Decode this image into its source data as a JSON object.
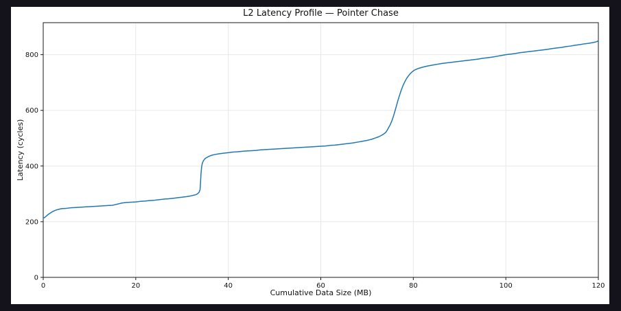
{
  "chart_data": {
    "type": "line",
    "title": "L2 Latency Profile — Pointer Chase",
    "xlabel": "Cumulative Data Size (MB)",
    "ylabel": "Latency (cycles)",
    "xlim": [
      0,
      120
    ],
    "ylim": [
      0,
      915
    ],
    "xticks": [
      0,
      20,
      40,
      60,
      80,
      100,
      120
    ],
    "yticks": [
      0,
      200,
      400,
      600,
      800
    ],
    "grid": true,
    "legend": false,
    "series": [
      {
        "name": "latency-vs-cumulative-data-size",
        "color": "#1f77b4",
        "points": [
          [
            0,
            212
          ],
          [
            0.3,
            215
          ],
          [
            0.6,
            219
          ],
          [
            1,
            225
          ],
          [
            1.5,
            231
          ],
          [
            2,
            236
          ],
          [
            2.5,
            240
          ],
          [
            3,
            243
          ],
          [
            3.5,
            245
          ],
          [
            4,
            247
          ],
          [
            5,
            248
          ],
          [
            6,
            250
          ],
          [
            7,
            251
          ],
          [
            8,
            252
          ],
          [
            9,
            253
          ],
          [
            10,
            254
          ],
          [
            11,
            255
          ],
          [
            12,
            256
          ],
          [
            13,
            257
          ],
          [
            14,
            258
          ],
          [
            15,
            259
          ],
          [
            15.5,
            261
          ],
          [
            16,
            263
          ],
          [
            16.5,
            265
          ],
          [
            17,
            267
          ],
          [
            18,
            269
          ],
          [
            19,
            270
          ],
          [
            20,
            271
          ],
          [
            21,
            273
          ],
          [
            22,
            274
          ],
          [
            23,
            276
          ],
          [
            24,
            277
          ],
          [
            25,
            279
          ],
          [
            26,
            281
          ],
          [
            27,
            282
          ],
          [
            28,
            284
          ],
          [
            29,
            286
          ],
          [
            30,
            288
          ],
          [
            31,
            290
          ],
          [
            32,
            293
          ],
          [
            32.5,
            295
          ],
          [
            33,
            297
          ],
          [
            33.4,
            301
          ],
          [
            33.7,
            306
          ],
          [
            33.9,
            315
          ],
          [
            34,
            340
          ],
          [
            34.1,
            372
          ],
          [
            34.25,
            398
          ],
          [
            34.4,
            410
          ],
          [
            34.6,
            418
          ],
          [
            34.8,
            423
          ],
          [
            35,
            427
          ],
          [
            35.5,
            432
          ],
          [
            36,
            436
          ],
          [
            36.5,
            439
          ],
          [
            37,
            441
          ],
          [
            38,
            444
          ],
          [
            39,
            446
          ],
          [
            40,
            448
          ],
          [
            41,
            450
          ],
          [
            42,
            451
          ],
          [
            43,
            453
          ],
          [
            44,
            454
          ],
          [
            45,
            455
          ],
          [
            46,
            456
          ],
          [
            47,
            458
          ],
          [
            48,
            459
          ],
          [
            49,
            460
          ],
          [
            50,
            461
          ],
          [
            52,
            463
          ],
          [
            54,
            465
          ],
          [
            56,
            467
          ],
          [
            58,
            469
          ],
          [
            60,
            471
          ],
          [
            61,
            472
          ],
          [
            62,
            474
          ],
          [
            63,
            475
          ],
          [
            64,
            477
          ],
          [
            65,
            479
          ],
          [
            66,
            481
          ],
          [
            67,
            483
          ],
          [
            68,
            486
          ],
          [
            69,
            489
          ],
          [
            70,
            492
          ],
          [
            70.5,
            494
          ],
          [
            71,
            496
          ],
          [
            71.5,
            499
          ],
          [
            72,
            502
          ],
          [
            72.5,
            505
          ],
          [
            73,
            509
          ],
          [
            73.5,
            514
          ],
          [
            74,
            520
          ],
          [
            74.3,
            527
          ],
          [
            74.6,
            536
          ],
          [
            75,
            548
          ],
          [
            75.4,
            564
          ],
          [
            75.8,
            584
          ],
          [
            76.2,
            607
          ],
          [
            76.6,
            631
          ],
          [
            77,
            653
          ],
          [
            77.4,
            673
          ],
          [
            77.8,
            690
          ],
          [
            78.2,
            704
          ],
          [
            78.6,
            716
          ],
          [
            79,
            725
          ],
          [
            79.4,
            733
          ],
          [
            79.8,
            739
          ],
          [
            80.2,
            744
          ],
          [
            80.6,
            747
          ],
          [
            81,
            750
          ],
          [
            82,
            755
          ],
          [
            83,
            759
          ],
          [
            84,
            762
          ],
          [
            85,
            765
          ],
          [
            86,
            768
          ],
          [
            87,
            770
          ],
          [
            88,
            772
          ],
          [
            89,
            774
          ],
          [
            90,
            776
          ],
          [
            91,
            778
          ],
          [
            92,
            780
          ],
          [
            93,
            782
          ],
          [
            94,
            784
          ],
          [
            95,
            787
          ],
          [
            96,
            789
          ],
          [
            97,
            791
          ],
          [
            98,
            794
          ],
          [
            99,
            797
          ],
          [
            100,
            800
          ],
          [
            101,
            802
          ],
          [
            102,
            804
          ],
          [
            103,
            807
          ],
          [
            104,
            809
          ],
          [
            105,
            811
          ],
          [
            106,
            813
          ],
          [
            107,
            815
          ],
          [
            108,
            817
          ],
          [
            109,
            819
          ],
          [
            110,
            822
          ],
          [
            111,
            824
          ],
          [
            112,
            826
          ],
          [
            113,
            829
          ],
          [
            114,
            831
          ],
          [
            115,
            834
          ],
          [
            116,
            836
          ],
          [
            117,
            839
          ],
          [
            118,
            841
          ],
          [
            119,
            844
          ],
          [
            119.5,
            846
          ],
          [
            119.8,
            848
          ],
          [
            120,
            851
          ]
        ]
      }
    ],
    "colors": {
      "page_background": "#14131c",
      "figure_background": "#ffffff",
      "grid": "#e8e8e8",
      "spine": "#1a1a1a",
      "text": "#111111",
      "line": "#1f77b4"
    }
  }
}
